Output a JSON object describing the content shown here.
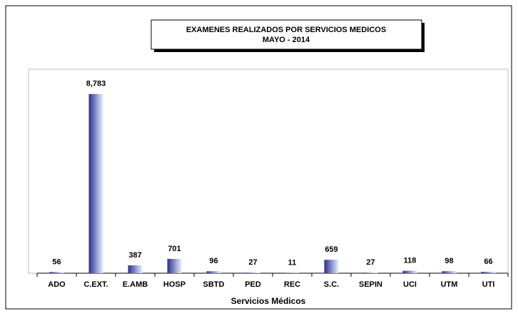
{
  "chart_data": {
    "type": "bar",
    "title": [
      "EXAMENES  REALIZADOS  POR SERVICIOS MEDICOS",
      "MAYO  -  2014"
    ],
    "x_label": "Servicios Médicos",
    "categories": [
      "ADO",
      "C.EXT.",
      "E.AMB",
      "HOSP",
      "SBTD",
      "PED",
      "REC",
      "S.C.",
      "SEPIN",
      "UCI",
      "UTM",
      "UTI"
    ],
    "values": [
      56,
      8783,
      387,
      701,
      96,
      27,
      11,
      659,
      27,
      118,
      98,
      66
    ],
    "value_labels": [
      "56",
      "8,783",
      "387",
      "701",
      "96",
      "27",
      "11",
      "659",
      "27",
      "118",
      "98",
      "66"
    ],
    "color": "#2b2f8f",
    "ylim": [
      0,
      10000
    ]
  }
}
